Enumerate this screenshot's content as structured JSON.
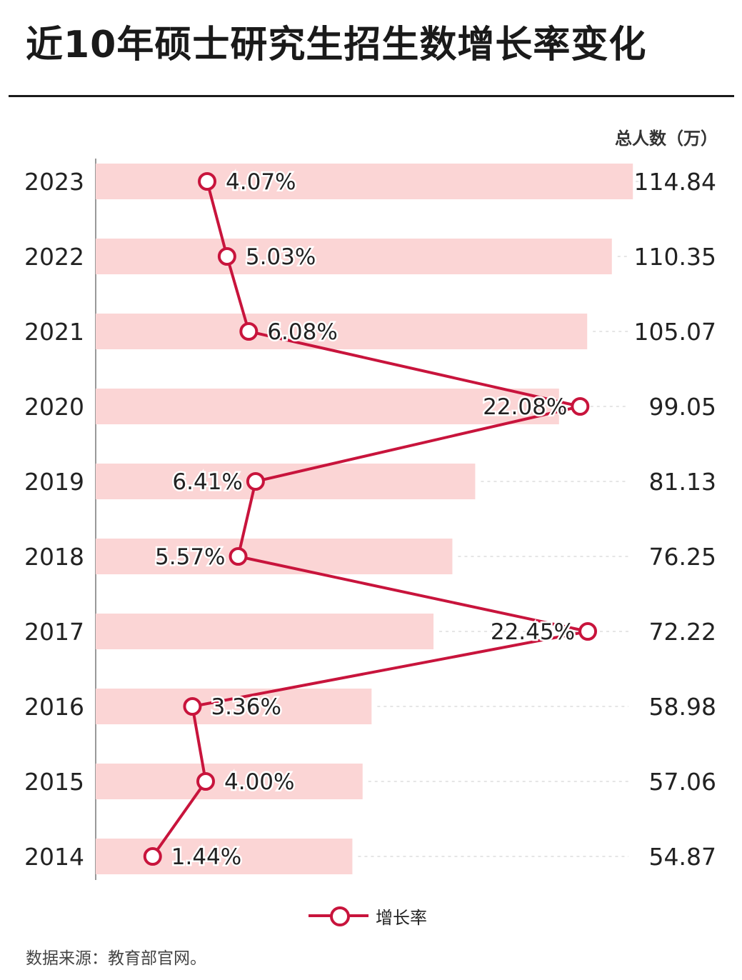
{
  "title": "近10年硕士研究生招生数增长率变化",
  "unit_label": "总人数（万）",
  "source": "数据来源：教育部官网。",
  "legend": {
    "label": "增长率"
  },
  "colors": {
    "bar": "#fbd5d5",
    "line": "#c8143c",
    "axis": "#999999",
    "text": "#222222"
  },
  "chart_data": {
    "type": "bar",
    "orientation": "horizontal",
    "categories": [
      "2023",
      "2022",
      "2021",
      "2020",
      "2019",
      "2018",
      "2017",
      "2016",
      "2015",
      "2014"
    ],
    "series": [
      {
        "name": "总人数（万）",
        "type": "bar",
        "values": [
          114.84,
          110.35,
          105.07,
          99.05,
          81.13,
          76.25,
          72.22,
          58.98,
          57.06,
          54.87
        ],
        "labels": [
          "114.84",
          "110.35",
          "105.07",
          "99.05",
          "81.13",
          "76.25",
          "72.22",
          "58.98",
          "57.06",
          "54.87"
        ]
      },
      {
        "name": "增长率",
        "type": "line",
        "values": [
          4.07,
          5.03,
          6.08,
          22.08,
          6.41,
          5.57,
          22.45,
          3.36,
          4.0,
          1.44
        ],
        "labels": [
          "4.07%",
          "5.03%",
          "6.08%",
          "22.08%",
          "6.41%",
          "5.57%",
          "22.45%",
          "3.36%",
          "4.00%",
          "1.44%"
        ]
      }
    ],
    "legend_position": "bottom-center",
    "grid": false
  }
}
